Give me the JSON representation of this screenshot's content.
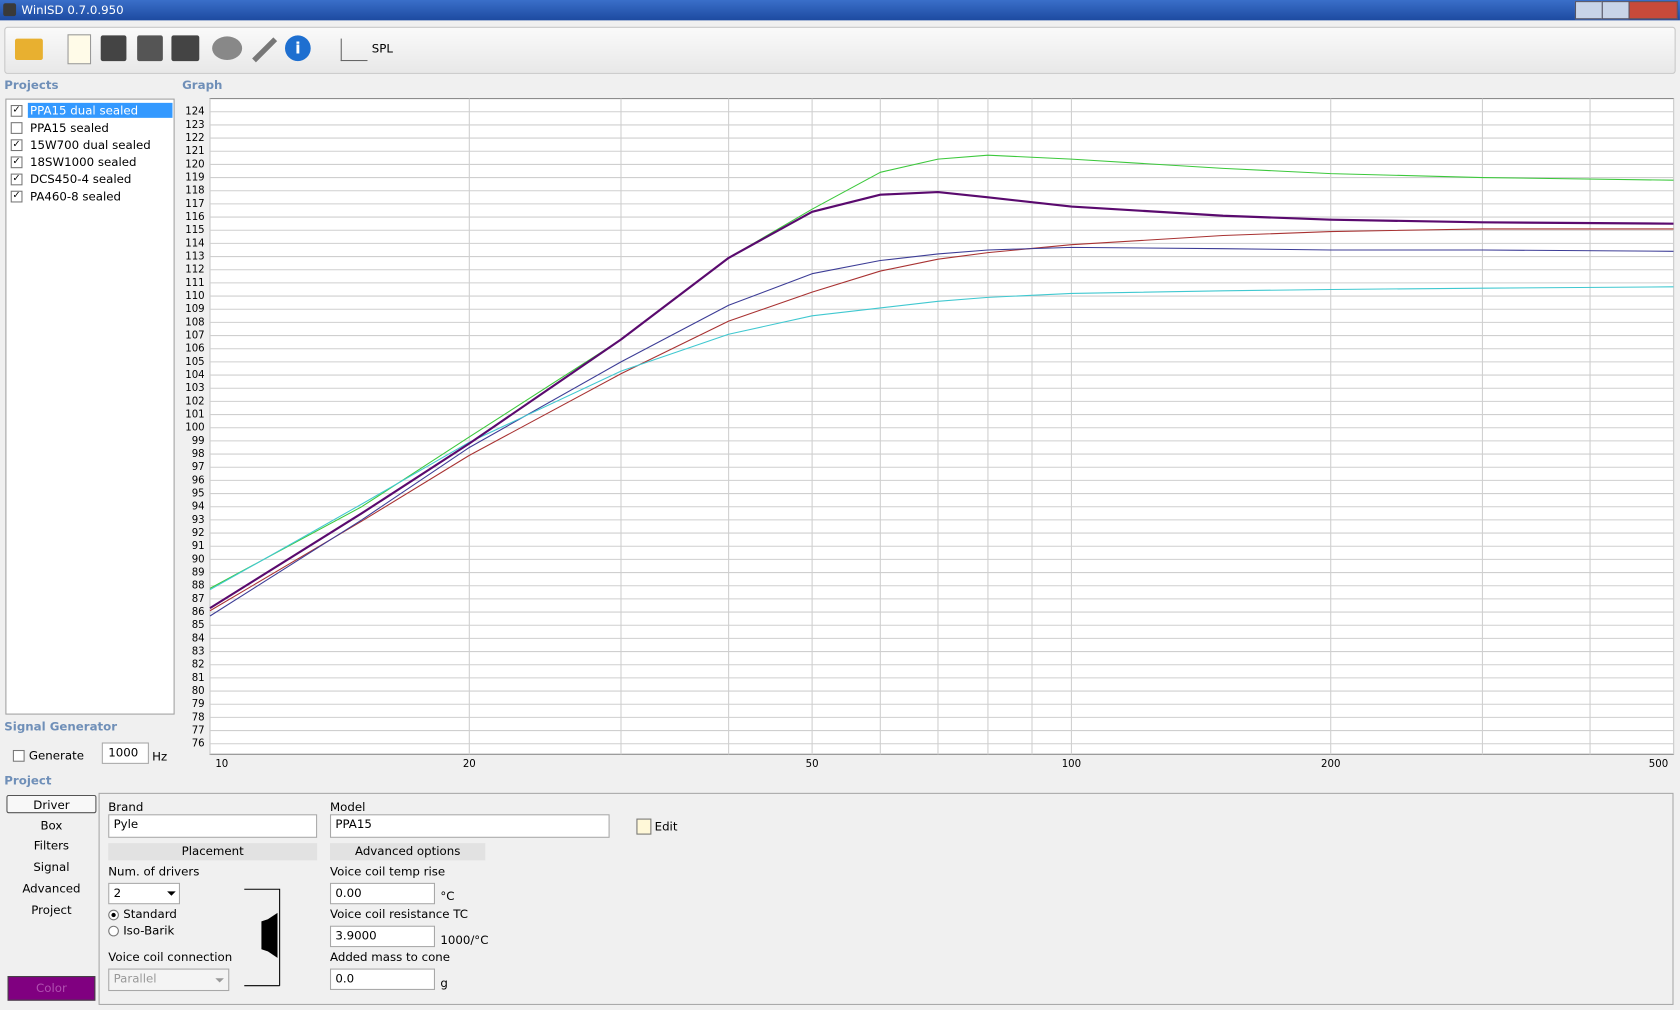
{
  "window": {
    "title": "WinISD 0.7.0.950"
  },
  "toolbar": {
    "spl_label": "SPL"
  },
  "projects": {
    "title": "Projects",
    "items": [
      {
        "label": "PPA15 dual sealed",
        "checked": true,
        "selected": true
      },
      {
        "label": "PPA15 sealed",
        "checked": false,
        "selected": false
      },
      {
        "label": "15W700 dual sealed",
        "checked": true,
        "selected": false
      },
      {
        "label": "18SW1000 sealed",
        "checked": true,
        "selected": false
      },
      {
        "label": "DCS450-4 sealed",
        "checked": true,
        "selected": false
      },
      {
        "label": "PA460-8 sealed",
        "checked": true,
        "selected": false
      }
    ]
  },
  "graph": {
    "title": "Graph"
  },
  "chart_data": {
    "type": "line",
    "log_x": true,
    "grid": true,
    "x": [
      10,
      15,
      20,
      30,
      40,
      50,
      60,
      70,
      80,
      100,
      150,
      200,
      300,
      500
    ],
    "xlim": [
      10,
      500
    ],
    "xticks": [
      10,
      20,
      50,
      100,
      200,
      500
    ],
    "xminorticks": [
      30,
      40,
      60,
      70,
      80,
      90,
      300,
      400
    ],
    "ylim": [
      75.2,
      125
    ],
    "yticks": [
      76,
      77,
      78,
      79,
      80,
      81,
      82,
      83,
      84,
      85,
      86,
      87,
      88,
      89,
      90,
      91,
      92,
      93,
      94,
      95,
      96,
      97,
      98,
      99,
      100,
      101,
      102,
      103,
      104,
      105,
      106,
      107,
      108,
      109,
      110,
      111,
      112,
      113,
      114,
      115,
      116,
      117,
      118,
      119,
      120,
      121,
      122,
      123,
      124
    ],
    "series": [
      {
        "color": "#3cc83c",
        "values": [
          87.8,
          94.0,
          99.3,
          106.7,
          112.9,
          116.6,
          119.4,
          120.4,
          120.7,
          120.4,
          119.7,
          119.3,
          119.0,
          118.8
        ]
      },
      {
        "color": "#a83232",
        "values": [
          86.1,
          92.9,
          97.9,
          104.1,
          108.1,
          110.3,
          111.9,
          112.8,
          113.3,
          113.9,
          114.6,
          114.9,
          115.1,
          115.1
        ]
      },
      {
        "color": "#3c3c96",
        "values": [
          85.7,
          93.0,
          98.5,
          105.0,
          109.3,
          111.7,
          112.7,
          113.2,
          113.5,
          113.7,
          113.6,
          113.5,
          113.5,
          113.4
        ]
      },
      {
        "color": "#40c8d0",
        "values": [
          87.7,
          94.2,
          98.9,
          104.3,
          107.1,
          108.5,
          109.1,
          109.6,
          109.9,
          110.2,
          110.4,
          110.5,
          110.6,
          110.7
        ]
      },
      {
        "color": "#5a0a6e",
        "width": 2,
        "values": [
          86.3,
          93.5,
          98.8,
          106.7,
          112.9,
          116.4,
          117.7,
          117.9,
          117.5,
          116.8,
          116.1,
          115.8,
          115.6,
          115.5
        ]
      }
    ]
  },
  "signal_generator": {
    "title": "Signal Generator",
    "generate_label": "Generate",
    "generate_checked": false,
    "frequency": "1000",
    "unit": "Hz"
  },
  "project": {
    "title": "Project",
    "tabs": [
      "Driver",
      "Box",
      "Filters",
      "Signal",
      "Advanced",
      "Project"
    ],
    "color_button": "Color",
    "brand_label": "Brand",
    "brand": "Pyle",
    "model_label": "Model",
    "model": "PPA15",
    "edit": "Edit",
    "placement": "Placement",
    "advanced_options": "Advanced options",
    "num_drivers_label": "Num. of drivers",
    "num_drivers": "2",
    "standard": "Standard",
    "iso_barik": "Iso-Barik",
    "standard_selected": true,
    "vc_connection_label": "Voice coil connection",
    "vc_connection": "Parallel",
    "vc_temp_label": "Voice coil temp rise",
    "vc_temp": "0.00",
    "vc_temp_unit": "°C",
    "vc_res_label": "Voice coil resistance TC",
    "vc_res": "3.9000",
    "vc_res_unit": "1000/°C",
    "mass_label": "Added mass to cone",
    "mass": "0.0",
    "mass_unit": "g"
  }
}
